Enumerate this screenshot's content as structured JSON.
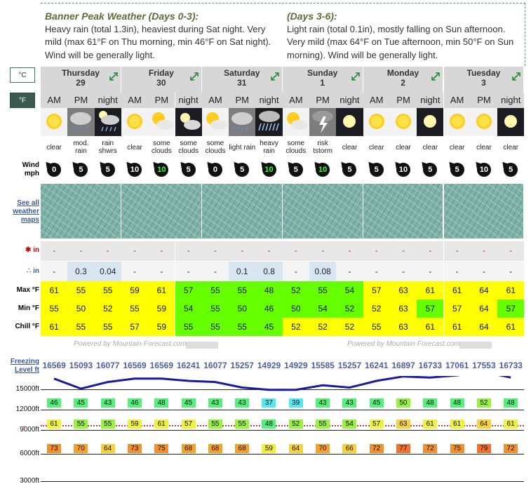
{
  "summary": {
    "left_title": "Banner Peak Weather (Days 0-3):",
    "left_text": "Heavy rain (total 1.3in), heaviest during Sat night. Very mild (max 61°F on Thu morning, min 46°F on Sat night). Wind will be generally light.",
    "right_title": "(Days 3-6):",
    "right_text": "Light rain (total 0.1in), mostly falling on Sun afternoon. Very mild (max 64°F on Tue afternoon, min 50°F on Sun morning). Wind will be generally light."
  },
  "units": {
    "celsius": "°C",
    "fahrenheit": "°F"
  },
  "days": [
    {
      "name": "Thursday",
      "date": "29"
    },
    {
      "name": "Friday",
      "date": "30"
    },
    {
      "name": "Saturday",
      "date": "31"
    },
    {
      "name": "Sunday",
      "date": "1"
    },
    {
      "name": "Monday",
      "date": "2"
    },
    {
      "name": "Tuesday",
      "date": "3"
    }
  ],
  "periods": [
    "AM",
    "PM",
    "night",
    "AM",
    "PM",
    "night",
    "AM",
    "PM",
    "night",
    "AM",
    "PM",
    "night",
    "AM",
    "PM",
    "night",
    "AM",
    "PM",
    "night"
  ],
  "icons": [
    "sun-icon",
    "cloud-rain-icon",
    "moon-rain-icon",
    "sun-icon",
    "sun-cloud-icon",
    "moon-cloud-icon",
    "sun-cloud-icon",
    "cloud-rain-icon",
    "cloud-heavy-rain-icon",
    "sun-cloud-icon",
    "thunderstorm-icon",
    "moon-icon",
    "sun-icon",
    "sun-icon",
    "moon-icon",
    "sun-icon",
    "sun-icon",
    "moon-icon"
  ],
  "conditions": [
    "clear",
    "mod. rain",
    "rain shwrs",
    "clear",
    "some clouds",
    "some clouds",
    "some clouds",
    "light rain",
    "heavy rain",
    "some clouds",
    "risk tstorm",
    "clear",
    "clear",
    "clear",
    "clear",
    "clear",
    "clear",
    "clear"
  ],
  "labels": {
    "wind": "Wind",
    "wind_unit": "mph",
    "maps_link": "See all weather maps",
    "snow_unit": "in",
    "rain_unit": "in",
    "max": "Max °F",
    "min": "Min °F",
    "chill": "Chill °F",
    "freezing": "Freezing Level ft",
    "powered": "Powered by Mountain-Forecast.com"
  },
  "wind": [
    0,
    5,
    5,
    10,
    10,
    5,
    0,
    5,
    10,
    5,
    10,
    5,
    5,
    10,
    5,
    5,
    10,
    5
  ],
  "snow": [
    "-",
    "-",
    "-",
    "-",
    "-",
    "-",
    "-",
    "-",
    "-",
    "-",
    "-",
    "-",
    "-",
    "-",
    "-",
    "-",
    "-",
    "-"
  ],
  "rain": [
    "-",
    "0.3",
    "0.04",
    "-",
    "-",
    "-",
    "-",
    "0.1",
    "0.8",
    "-",
    "0.08",
    "-",
    "-",
    "-",
    "-",
    "-",
    "-",
    "-"
  ],
  "max": [
    61,
    55,
    55,
    59,
    61,
    57,
    55,
    55,
    48,
    52,
    55,
    54,
    57,
    63,
    61,
    61,
    64,
    61
  ],
  "min": [
    55,
    50,
    52,
    55,
    59,
    54,
    55,
    50,
    46,
    50,
    54,
    52,
    52,
    63,
    57,
    57,
    64,
    57
  ],
  "chill": [
    61,
    55,
    55,
    57,
    59,
    55,
    55,
    55,
    45,
    52,
    52,
    52,
    55,
    63,
    61,
    61,
    64,
    61
  ],
  "freezing": [
    16569,
    15093,
    16077,
    16569,
    16569,
    16241,
    16077,
    15257,
    14929,
    14929,
    15585,
    15257,
    16241,
    16897,
    16733,
    17061,
    17553,
    16733
  ],
  "altitudes": [
    "15000ft",
    "12000ft",
    "9000ft",
    "6000ft",
    "3000ft"
  ],
  "temps_12000": [
    46,
    45,
    43,
    46,
    48,
    45,
    43,
    43,
    37,
    39,
    43,
    43,
    45,
    50,
    48,
    48,
    52,
    48
  ],
  "temps_9000": [
    61,
    55,
    55,
    59,
    61,
    57,
    55,
    55,
    48,
    52,
    55,
    54,
    57,
    63,
    61,
    61,
    64,
    61
  ],
  "temps_6000": [
    73,
    70,
    64,
    73,
    75,
    68,
    68,
    68,
    59,
    64,
    70,
    66,
    72,
    77,
    72,
    75,
    79,
    72
  ],
  "colors": {
    "yellow": "#ffff00",
    "green": "#66ff00",
    "day_header": "#d7d7d7",
    "freezing_line": "#1a1aa0"
  }
}
